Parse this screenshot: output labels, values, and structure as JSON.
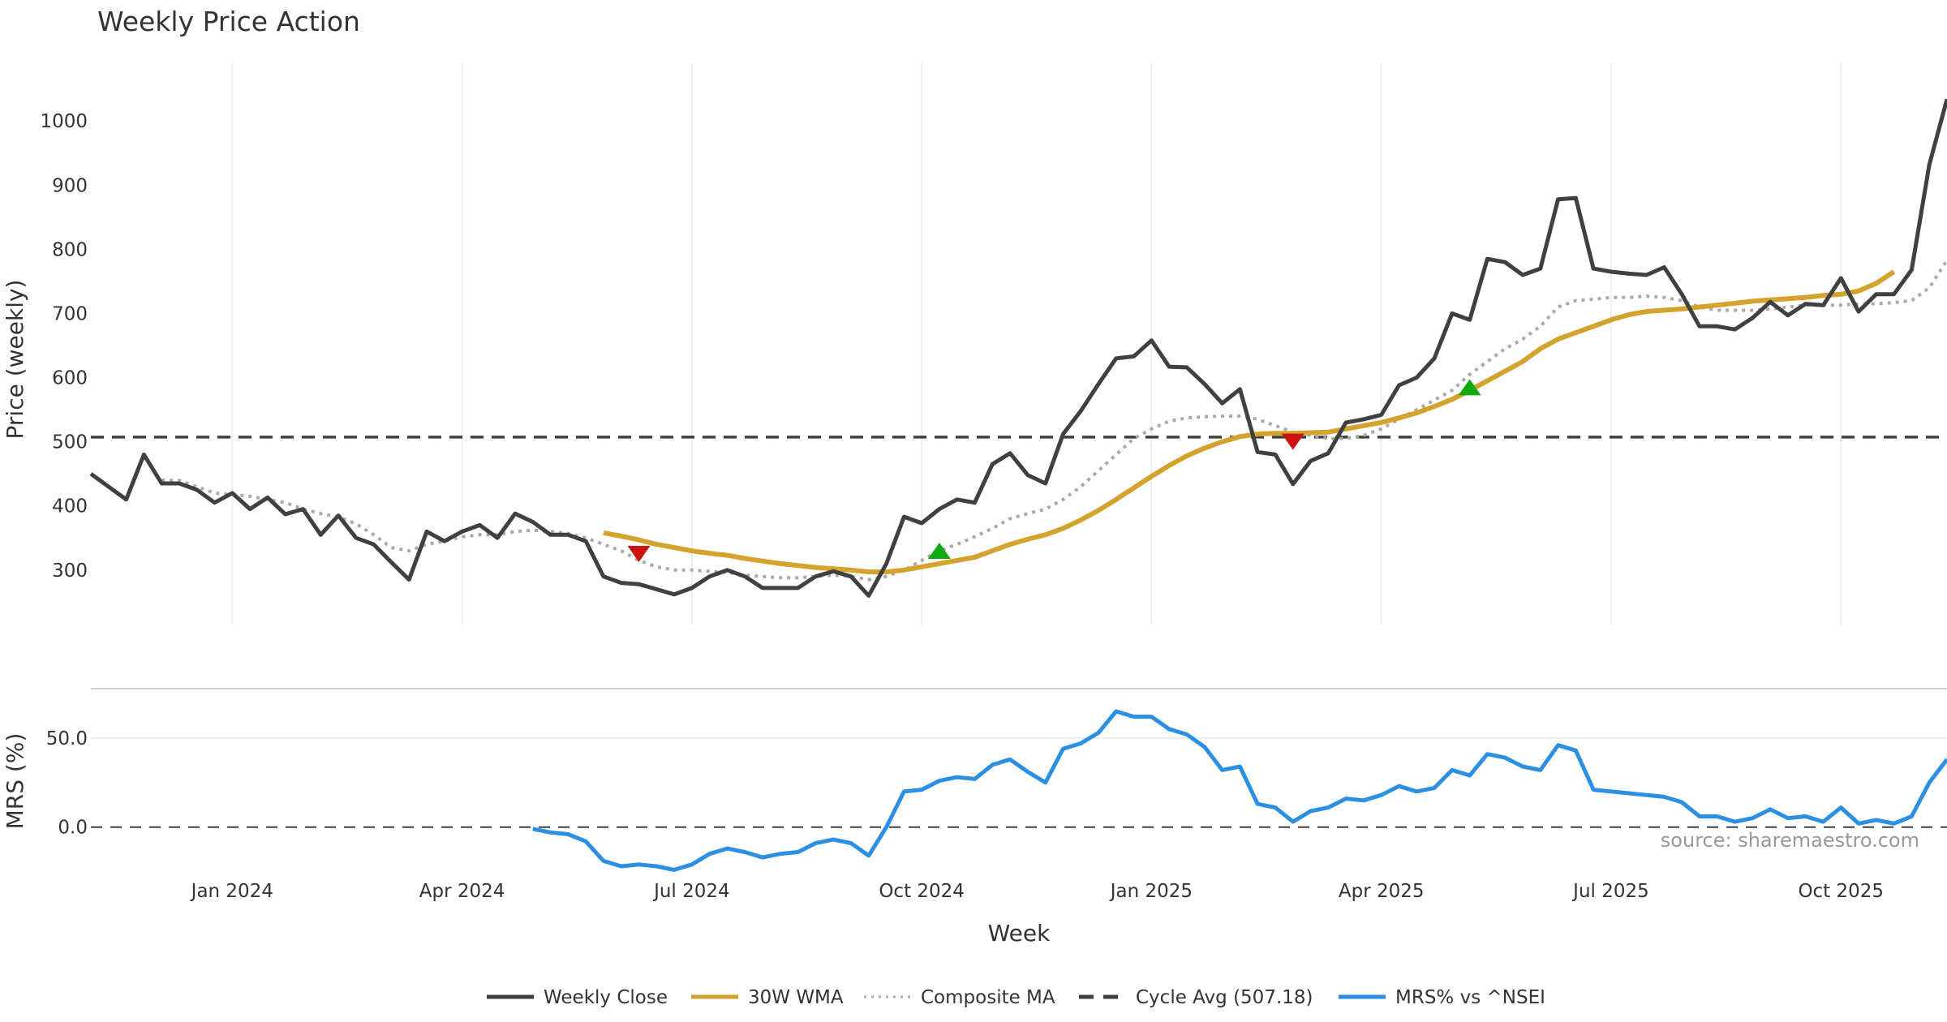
{
  "chart_data": [
    {
      "type": "line",
      "title": "Weekly Price Action",
      "xlabel": "",
      "ylabel": "Price (weekly)",
      "ylim": [
        215,
        1090
      ],
      "yticks": [
        300,
        400,
        500,
        600,
        700,
        800,
        900,
        1000
      ],
      "cycle_avg": 507.18,
      "series": [
        {
          "name": "Weekly Close",
          "color": "#404040",
          "style": "solid",
          "values": [
            450,
            430,
            410,
            480,
            435,
            435,
            425,
            405,
            420,
            395,
            413,
            387,
            395,
            355,
            385,
            350,
            340,
            312,
            285,
            360,
            345,
            360,
            370,
            350,
            388,
            375,
            355,
            355,
            345,
            290,
            280,
            278,
            270,
            262,
            272,
            290,
            300,
            290,
            272,
            272,
            272,
            290,
            298,
            290,
            260,
            310,
            383,
            373,
            395,
            410,
            405,
            465,
            482,
            448,
            435,
            512,
            548,
            590,
            630,
            633,
            658,
            617,
            616,
            590,
            560,
            582,
            484,
            480,
            434,
            470,
            482,
            530,
            535,
            542,
            588,
            600,
            630,
            700,
            690,
            785,
            780,
            760,
            770,
            878,
            880,
            770,
            765,
            762,
            760,
            772,
            730,
            680,
            680,
            675,
            693,
            718,
            697,
            715,
            713,
            755,
            703,
            730,
            730,
            768,
            932,
            1034
          ]
        },
        {
          "name": "30W WMA",
          "color": "#D4A32E",
          "style": "solid",
          "values": [
            null,
            null,
            null,
            null,
            null,
            null,
            null,
            null,
            null,
            null,
            null,
            null,
            null,
            null,
            null,
            null,
            null,
            null,
            null,
            null,
            null,
            null,
            null,
            null,
            null,
            null,
            null,
            null,
            null,
            358,
            353,
            347,
            340,
            335,
            330,
            326,
            323,
            318,
            314,
            310,
            307,
            304,
            302,
            300,
            297,
            297,
            300,
            305,
            310,
            315,
            320,
            330,
            340,
            348,
            355,
            365,
            378,
            393,
            410,
            428,
            446,
            463,
            478,
            490,
            500,
            508,
            512,
            513,
            513,
            514,
            515,
            520,
            525,
            530,
            537,
            545,
            555,
            566,
            580,
            595,
            610,
            625,
            645,
            660,
            670,
            680,
            690,
            698,
            703,
            705,
            707,
            710,
            713,
            716,
            719,
            721,
            723,
            725,
            728,
            730,
            735,
            747,
            765
          ]
        },
        {
          "name": "Composite MA",
          "color": "#AAAAAA",
          "style": "dotted",
          "values": [
            null,
            null,
            null,
            null,
            440,
            440,
            430,
            420,
            418,
            415,
            410,
            405,
            395,
            388,
            383,
            372,
            355,
            335,
            330,
            340,
            345,
            352,
            355,
            355,
            360,
            362,
            360,
            357,
            350,
            340,
            330,
            315,
            305,
            300,
            300,
            298,
            296,
            292,
            290,
            288,
            288,
            290,
            292,
            290,
            285,
            290,
            300,
            315,
            330,
            340,
            352,
            365,
            380,
            388,
            395,
            410,
            430,
            455,
            480,
            505,
            520,
            532,
            537,
            539,
            540,
            540,
            535,
            525,
            515,
            510,
            505,
            505,
            510,
            520,
            535,
            550,
            565,
            580,
            605,
            625,
            645,
            660,
            680,
            710,
            720,
            722,
            725,
            725,
            727,
            725,
            720,
            710,
            705,
            705,
            705,
            707,
            710,
            713,
            713,
            713,
            715,
            715,
            717,
            720,
            740,
            783
          ]
        },
        {
          "name": "Cycle Avg (507.18)",
          "color": "#404040",
          "style": "dashed",
          "value": 507.18
        }
      ],
      "signals": [
        {
          "type": "sell",
          "index": 31,
          "value": 325,
          "color": "#CC1111"
        },
        {
          "type": "buy",
          "index": 48,
          "value": 330,
          "color": "#11AA11"
        },
        {
          "type": "sell",
          "index": 68,
          "value": 500,
          "color": "#CC1111"
        },
        {
          "type": "buy",
          "index": 78,
          "value": 585,
          "color": "#11AA11"
        }
      ],
      "source": "source: sharemaestro.com"
    },
    {
      "type": "line",
      "title": "",
      "xlabel": "Week",
      "ylabel": "MRS (%)",
      "ylim": [
        -32,
        75
      ],
      "yticks": [
        0.0,
        50.0
      ],
      "ytick_labels": [
        "0.0",
        "50.0"
      ],
      "x_tick_labels": [
        "Jan 2024",
        "Apr 2024",
        "Jul 2024",
        "Oct 2024",
        "Jan 2025",
        "Apr 2025",
        "Jul 2025",
        "Oct 2025"
      ],
      "x_tick_week_index": [
        8,
        21,
        34,
        47,
        60,
        73,
        86,
        99
      ],
      "series": [
        {
          "name": "MRS% vs ^NSEI",
          "color": "#2B8FE3",
          "style": "solid",
          "values": [
            null,
            null,
            null,
            null,
            null,
            null,
            null,
            null,
            null,
            null,
            null,
            null,
            null,
            null,
            null,
            null,
            null,
            null,
            null,
            null,
            null,
            null,
            null,
            null,
            null,
            -1,
            -3,
            -4,
            -8,
            -19,
            -22,
            -21,
            -22,
            -24,
            -21,
            -15,
            -12,
            -14,
            -17,
            -15,
            -14,
            -9,
            -7,
            -9,
            -16,
            0,
            20,
            21,
            26,
            28,
            27,
            35,
            38,
            31,
            25,
            44,
            47,
            53,
            65,
            62,
            62,
            55,
            52,
            45,
            32,
            34,
            13,
            11,
            3,
            9,
            11,
            16,
            15,
            18,
            23,
            20,
            22,
            32,
            29,
            41,
            39,
            34,
            32,
            46,
            43,
            21,
            20,
            19,
            18,
            17,
            14,
            6,
            6,
            3,
            5,
            10,
            5,
            6,
            3,
            11,
            2,
            4,
            2,
            6,
            25,
            38
          ]
        }
      ]
    }
  ],
  "legend": [
    {
      "label": "Weekly Close",
      "color": "#404040",
      "style": "solid"
    },
    {
      "label": "30W WMA",
      "color": "#D4A32E",
      "style": "solid"
    },
    {
      "label": "Composite MA",
      "color": "#AAAAAA",
      "style": "dotted"
    },
    {
      "label": "Cycle Avg (507.18)",
      "color": "#404040",
      "style": "dashed"
    },
    {
      "label": "MRS% vs ^NSEI",
      "color": "#2B8FE3",
      "style": "solid"
    }
  ]
}
